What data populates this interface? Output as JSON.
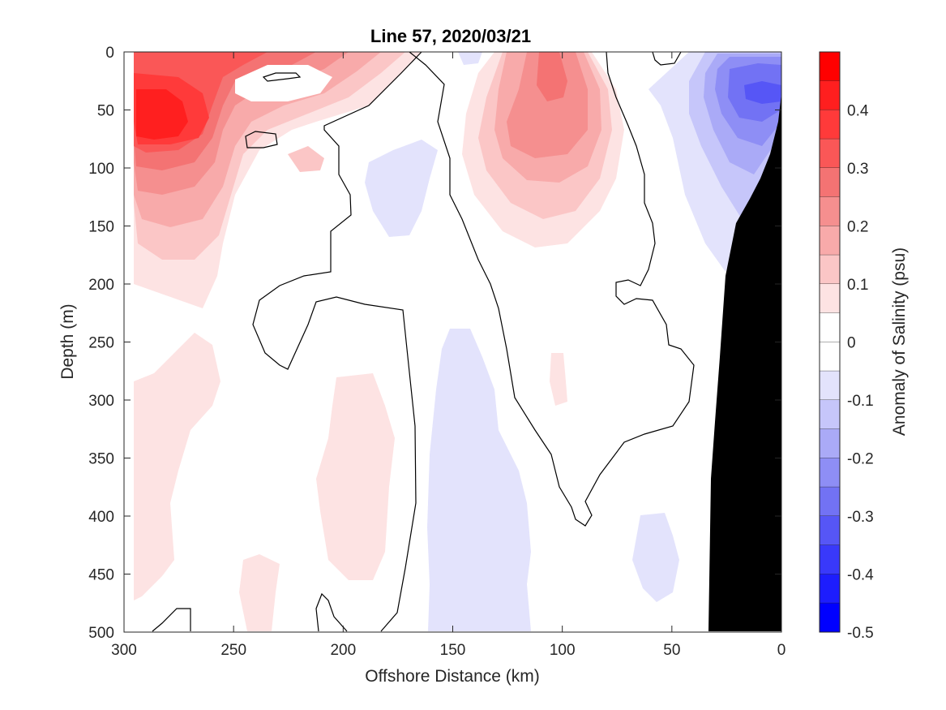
{
  "chart_data": {
    "type": "heatmap",
    "title": "Line 57, 2020/03/21",
    "xlabel": "Offshore Distance (km)",
    "ylabel": "Depth (m)",
    "xlim": [
      300,
      0
    ],
    "ylim": [
      0,
      500
    ],
    "x_reversed": true,
    "y_reversed": true,
    "x_ticks": [
      300,
      250,
      200,
      150,
      100,
      50,
      0
    ],
    "y_ticks": [
      0,
      50,
      100,
      150,
      200,
      250,
      300,
      350,
      400,
      450,
      500
    ],
    "grid": false,
    "colorbar": {
      "label": "Anomaly of Salinity (psu)",
      "range": [
        -0.5,
        0.5
      ],
      "tick_values": [
        0.4,
        0.3,
        0.2,
        0.1,
        0,
        -0.1,
        -0.2,
        -0.3,
        -0.4,
        -0.5
      ],
      "tick_labels": [
        "0.4",
        "0.3",
        "0.2",
        "0.1",
        "0",
        "-0.1",
        "-0.2",
        "-0.3",
        "-0.4",
        "-0.5"
      ],
      "levels": [
        {
          "min": 0.45,
          "max": 0.5,
          "color": "#ff0000"
        },
        {
          "min": 0.4,
          "max": 0.45,
          "color": "#ff1f1f"
        },
        {
          "min": 0.35,
          "max": 0.4,
          "color": "#ff3a3a"
        },
        {
          "min": 0.3,
          "max": 0.35,
          "color": "#fa5757"
        },
        {
          "min": 0.25,
          "max": 0.3,
          "color": "#f47373"
        },
        {
          "min": 0.2,
          "max": 0.25,
          "color": "#f58f8f"
        },
        {
          "min": 0.15,
          "max": 0.2,
          "color": "#f8aaaa"
        },
        {
          "min": 0.1,
          "max": 0.15,
          "color": "#fbc6c6"
        },
        {
          "min": 0.05,
          "max": 0.1,
          "color": "#fde3e3"
        },
        {
          "min": 0.0,
          "max": 0.05,
          "color": "#ffffff"
        },
        {
          "min": -0.05,
          "max": 0.0,
          "color": "#ffffff"
        },
        {
          "min": -0.1,
          "max": -0.05,
          "color": "#e3e3fc"
        },
        {
          "min": -0.15,
          "max": -0.1,
          "color": "#c6c6fa"
        },
        {
          "min": -0.2,
          "max": -0.15,
          "color": "#aaaaf7"
        },
        {
          "min": -0.25,
          "max": -0.2,
          "color": "#8e8ef5"
        },
        {
          "min": -0.3,
          "max": -0.25,
          "color": "#7272f4"
        },
        {
          "min": -0.35,
          "max": -0.3,
          "color": "#5656f6"
        },
        {
          "min": -0.4,
          "max": -0.35,
          "color": "#3939fa"
        },
        {
          "min": -0.45,
          "max": -0.4,
          "color": "#1d1dfd"
        },
        {
          "min": -0.5,
          "max": -0.45,
          "color": "#0000ff"
        }
      ]
    },
    "contour_line_level": 0,
    "bathymetry_color": "#000000",
    "field_features": [
      {
        "name": "high-salinity-core-offshore",
        "x_km": 285,
        "depth_m": 62,
        "anomaly_psu": 0.42
      },
      {
        "name": "high-salinity-eddy-mid",
        "x_km": 105,
        "depth_m": 50,
        "anomaly_psu": 0.22
      },
      {
        "name": "low-salinity-nearshore-surface",
        "x_km": 15,
        "depth_m": 35,
        "anomaly_psu": -0.3
      },
      {
        "name": "low-salinity-deep-band",
        "x_km": 140,
        "depth_m": 400,
        "anomaly_psu": -0.07
      },
      {
        "name": "high-salinity-deep-patch-west",
        "x_km": 280,
        "depth_m": 360,
        "anomaly_psu": 0.07
      },
      {
        "name": "high-salinity-deep-patch-mid",
        "x_km": 195,
        "depth_m": 380,
        "anomaly_psu": 0.07
      }
    ]
  }
}
